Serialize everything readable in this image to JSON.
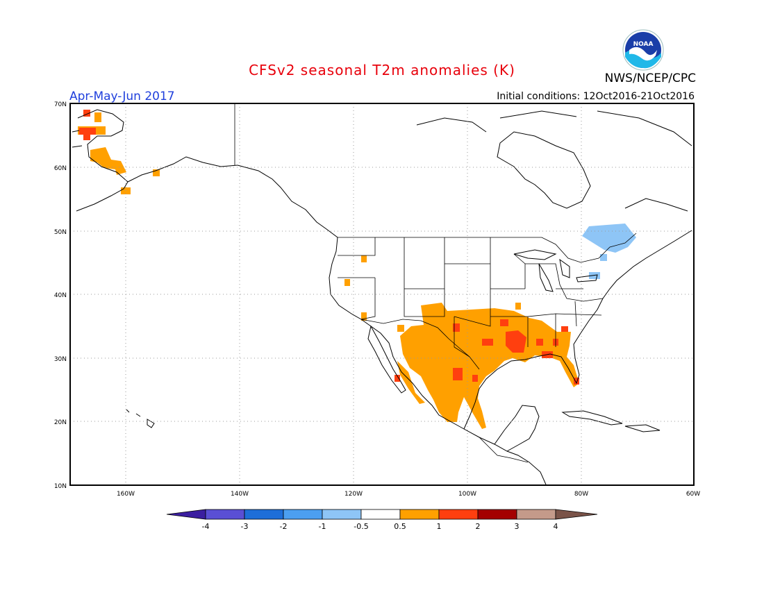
{
  "title": "CFSv2 seasonal T2m anomalies (K)",
  "agency": "NWS/NCEP/CPC",
  "logo_text": "NOAA",
  "period": "Apr-May-Jun 2017",
  "initial_conditions": "Initial conditions: 12Oct2016-21Oct2016",
  "colors": {
    "title": "#e8000b",
    "period": "#1f3fdc",
    "neg4": "#3b1ea0",
    "neg3": "#5a4fd4",
    "neg2": "#1e6ed8",
    "neg1": "#4c9ff0",
    "neg05": "#8ec5f6",
    "neutral": "#ffffff",
    "pos05": "#ffa000",
    "pos1": "#ff3f0f",
    "pos2": "#a40000",
    "pos3": "#c49a8a",
    "pos4": "#7a5348"
  },
  "axes": {
    "lat_labels": [
      "70N",
      "60N",
      "50N",
      "40N",
      "30N",
      "20N",
      "10N"
    ],
    "lon_labels": [
      "160W",
      "140W",
      "120W",
      "100W",
      "80W",
      "60W"
    ]
  },
  "legend": {
    "labels": [
      "-4",
      "-3",
      "-2",
      "-1",
      "-0.5",
      "0.5",
      "1",
      "2",
      "3",
      "4"
    ]
  }
}
